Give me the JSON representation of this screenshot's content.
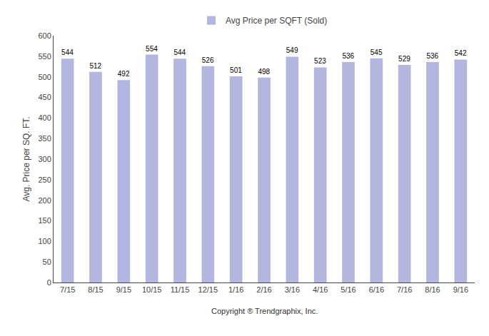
{
  "chart_data": {
    "type": "bar",
    "categories": [
      "7/15",
      "8/15",
      "9/15",
      "10/15",
      "11/15",
      "12/15",
      "1/16",
      "2/16",
      "3/16",
      "4/16",
      "5/16",
      "6/16",
      "7/16",
      "8/16",
      "9/16"
    ],
    "series": [
      {
        "name": "Avg Price per SQFT (Sold)",
        "color": "#b3b7e0",
        "values": [
          544,
          512,
          492,
          554,
          544,
          526,
          501,
          498,
          549,
          523,
          536,
          545,
          529,
          536,
          542
        ]
      }
    ],
    "ylabel": "Avg. Price per SQ. FT.",
    "annotation": "Copyright ® Trendgraphix, Inc.",
    "ylim": [
      0,
      600
    ],
    "yticks": [
      0,
      50,
      100,
      150,
      200,
      250,
      300,
      350,
      400,
      450,
      500,
      550,
      600
    ],
    "grid": false,
    "legend": "top",
    "data_labels": true
  }
}
